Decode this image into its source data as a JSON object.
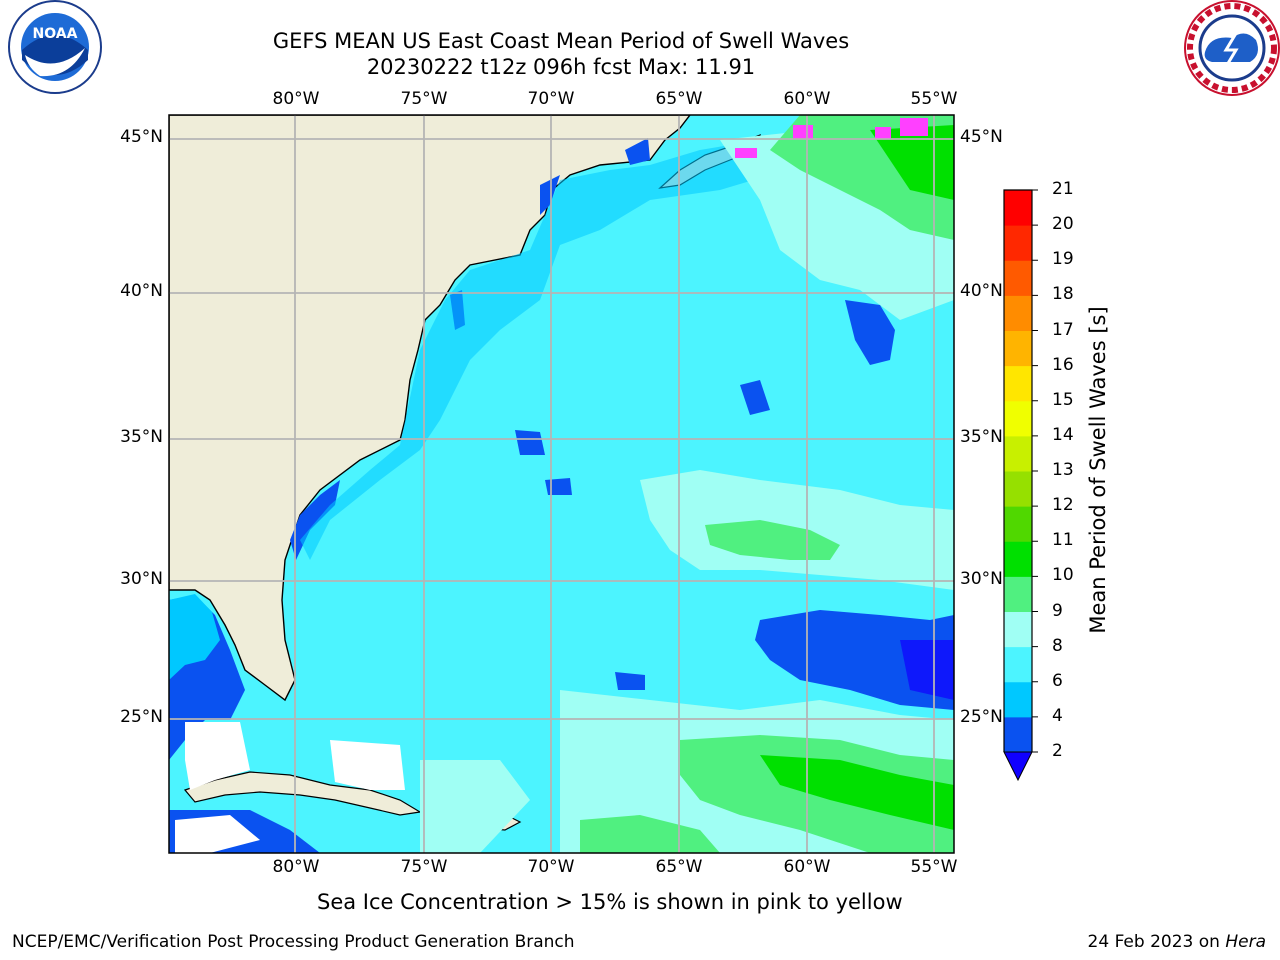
{
  "header": {
    "title_line1": "GEFS MEAN US East Coast Mean Period of Swell Waves",
    "title_line2": "20230222 t12z 096h fcst   Max: 11.91"
  },
  "logos": {
    "left": "noaa-logo",
    "right": "national-weather-service-logo",
    "left_text": "NOAA"
  },
  "map": {
    "lon_labels": [
      "80°W",
      "75°W",
      "70°W",
      "65°W",
      "60°W",
      "55°W"
    ],
    "lat_labels": [
      "45°N",
      "40°N",
      "35°N",
      "30°N",
      "25°N"
    ],
    "land_color": "#efedd9",
    "grid_color": "#b5b5b5"
  },
  "colorbar": {
    "title": "Mean Period of Swell Waves [s]",
    "ticks": [
      "2",
      "4",
      "6",
      "8",
      "9",
      "10",
      "11",
      "12",
      "13",
      "14",
      "15",
      "16",
      "17",
      "18",
      "19",
      "20",
      "21"
    ],
    "colors": [
      "#0a52f0",
      "#00c8ff",
      "#4cf4ff",
      "#a0fff4",
      "#50f080",
      "#00e000",
      "#50d800",
      "#96e000",
      "#c8f000",
      "#f0ff00",
      "#ffe600",
      "#ffb400",
      "#ff8c00",
      "#ff5a00",
      "#ff2800",
      "#ff0000"
    ],
    "under_color": "#1000ff"
  },
  "footer": {
    "ice_note": "Sea Ice Concentration > 15% is shown in pink to yellow",
    "org": "NCEP/EMC/Verification Post Processing Product Generation Branch",
    "date": "24 Feb 2023 on",
    "machine": "Hera"
  }
}
